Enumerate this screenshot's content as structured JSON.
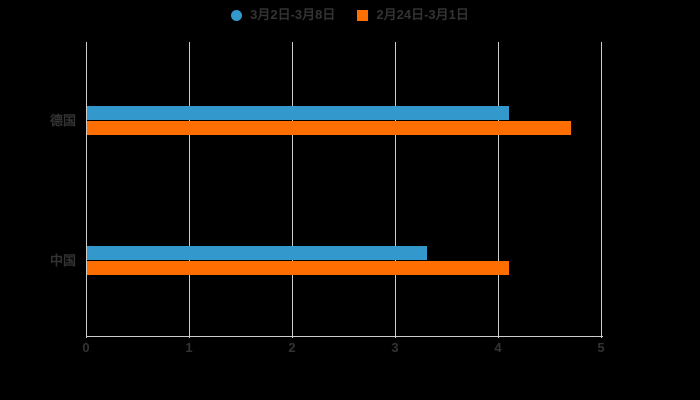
{
  "chart_data": {
    "type": "bar",
    "orientation": "horizontal",
    "title": "",
    "xlabel": "",
    "ylabel": "",
    "categories": [
      "德国",
      "中国"
    ],
    "series": [
      {
        "name": "3月2日-3月8日",
        "marker": "circle",
        "color": "#3398cc",
        "values": [
          4.1,
          3.3
        ]
      },
      {
        "name": "2月24日-3月1日",
        "marker": "square",
        "color": "#ff6e00",
        "values": [
          4.7,
          4.1
        ]
      }
    ],
    "xlim": [
      0,
      5
    ],
    "xticks": [
      0,
      1,
      2,
      3,
      4,
      5
    ],
    "grid": true,
    "legend_position": "top-center",
    "background_color": "#000000",
    "text_color": "#333333",
    "grid_color": "#cccccc"
  }
}
